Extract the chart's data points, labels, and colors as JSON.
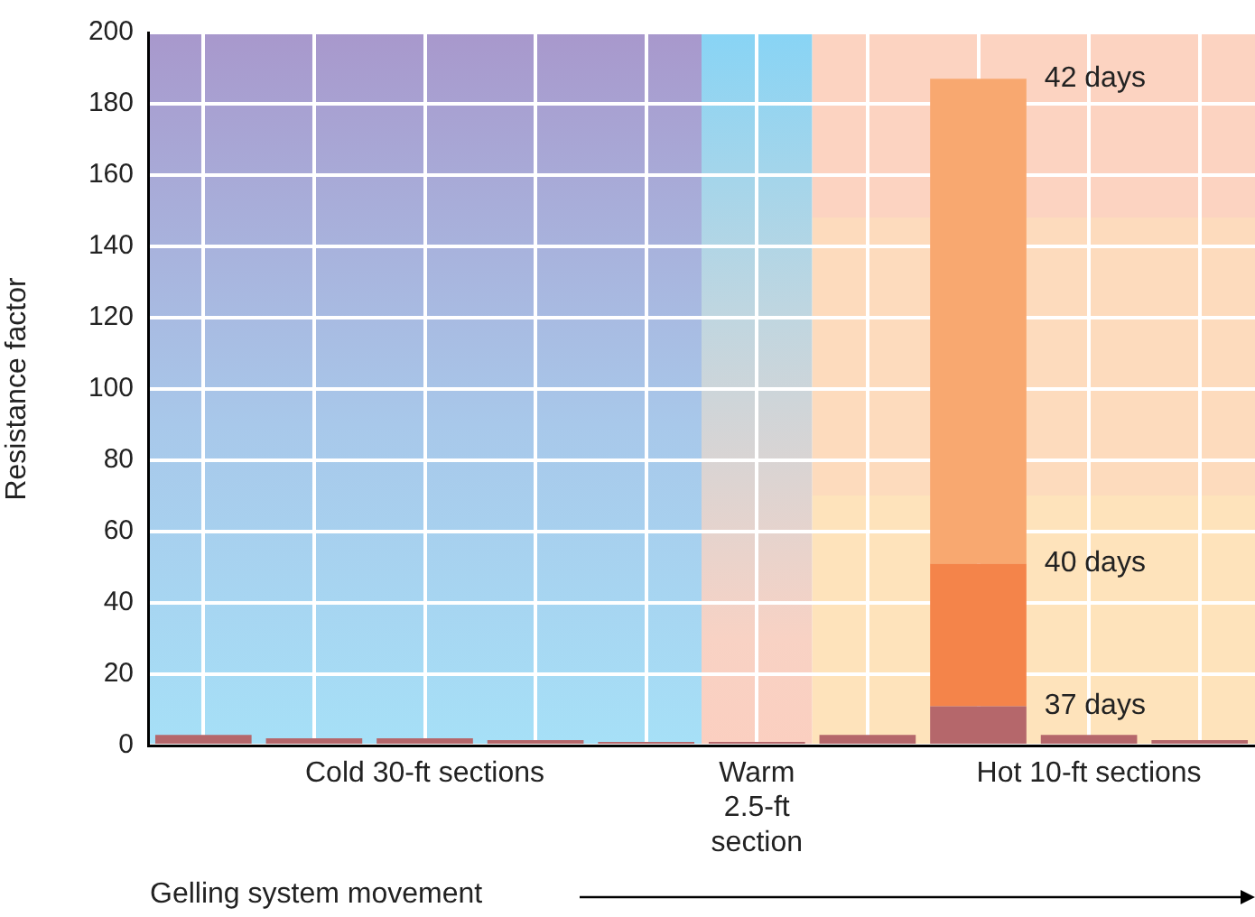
{
  "chart_data": {
    "type": "bar",
    "stacked": true,
    "ylabel": "Resistance factor",
    "categories": [
      null,
      null,
      "Cold 30-ft sections",
      null,
      null,
      "Warm 2.5-ft section",
      null,
      null,
      "Hot 10-ft sections",
      null
    ],
    "series": [
      {
        "color": "#b5676b",
        "values": [
          3,
          2,
          2,
          1.5,
          1,
          1,
          3,
          11,
          3,
          1.5
        ]
      },
      {
        "color": "#f4844a",
        "values": [
          null,
          null,
          null,
          null,
          null,
          null,
          null,
          40,
          null,
          null
        ]
      },
      {
        "color": "#f8a870",
        "values": [
          null,
          null,
          null,
          null,
          null,
          null,
          null,
          136,
          null,
          null
        ]
      }
    ],
    "bands": [
      {
        "axis": "x",
        "from": "Warm 2.5-ft section",
        "to": "Warm 2.5-ft section",
        "color": "#88d4f5"
      }
    ],
    "ylim": [
      0,
      200
    ],
    "yticks": [
      0,
      20,
      40,
      60,
      80,
      100,
      120,
      140,
      160,
      180,
      200
    ],
    "grid": true,
    "legend": false,
    "annotations": [
      "37 days",
      "40 days",
      "42 days",
      "Gelling system movement"
    ]
  }
}
